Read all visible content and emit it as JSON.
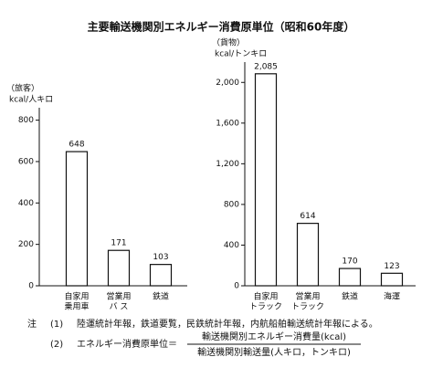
{
  "title": "主要輸送機関別エネルギー消費原単位（昭和60年度）",
  "chart_data": [
    {
      "type": "bar",
      "axis_group": "（旅客）",
      "ylabel": "kcal/人キロ",
      "categories": [
        [
          "自家用",
          "乗用車"
        ],
        [
          "営業用",
          "バ ス"
        ],
        [
          "鉄道"
        ]
      ],
      "values": [
        648,
        171,
        103
      ],
      "color": "#ffffff",
      "ylim": [
        0,
        860
      ],
      "yticks": [
        0,
        200,
        400,
        600,
        800
      ]
    },
    {
      "type": "bar",
      "axis_group": "（貨物）",
      "ylabel": "kcal/トンキロ",
      "categories": [
        [
          "自家用",
          "トラック"
        ],
        [
          "営業用",
          "トラック"
        ],
        [
          "鉄道"
        ],
        [
          "海運"
        ]
      ],
      "values": [
        2085,
        614,
        170,
        123
      ],
      "value_labels": [
        "2,085",
        "614",
        "170",
        "123"
      ],
      "color": "#ffffff",
      "ylim": [
        0,
        2200
      ],
      "yticks": [
        0,
        400,
        800,
        {
          "value": 1200,
          "label": "1,200"
        },
        {
          "value": 1600,
          "label": "1,600"
        },
        {
          "value": 2000,
          "label": "2,000"
        }
      ]
    }
  ],
  "notes": {
    "label": "注",
    "items": [
      {
        "num": "(1)",
        "text": "陸運統計年報，鉄道要覧，民鉄統計年報，内航船舶輸送統計年報による。"
      },
      {
        "num": "(2)",
        "text": "エネルギー消費原単位＝",
        "numerator": "輸送機関別エネルギー消費量(kcal)",
        "denominator": "輸送機関別輸送量(人キロ，トンキロ)"
      }
    ]
  }
}
